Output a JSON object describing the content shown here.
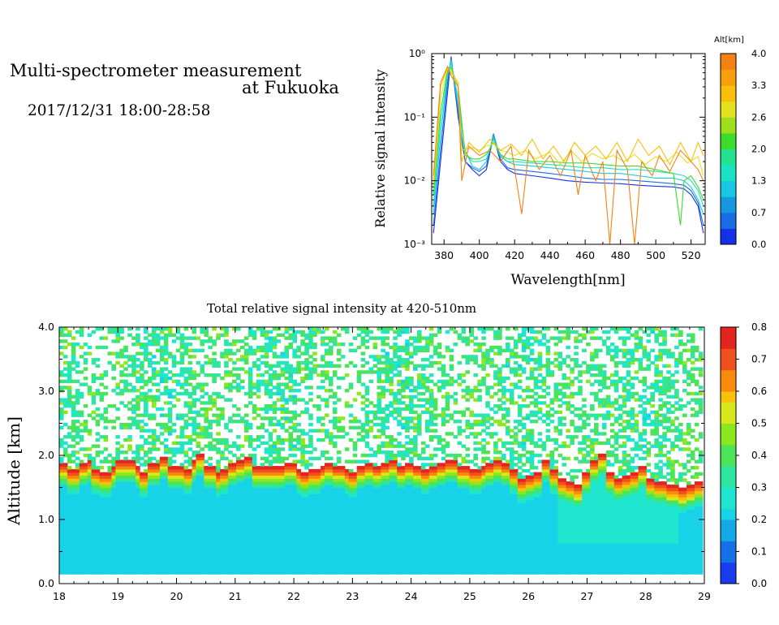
{
  "header": {
    "title_line1": "Multi-spectrometer measurement",
    "title_line2": "at Fukuoka",
    "period": "2017/12/31 18:00-28:58"
  },
  "colors": {
    "alt_scale": [
      "#1530e8",
      "#1a6ce6",
      "#1598e0",
      "#18c8e2",
      "#1ae3c4",
      "#22e490",
      "#3cdc2c",
      "#9ede1a",
      "#e4e11e",
      "#f8c00a",
      "#f8a00a",
      "#f38212"
    ],
    "intensity_scale": [
      "#1a3cf0",
      "#1670e8",
      "#14a8e6",
      "#18d2e8",
      "#1ee6cf",
      "#2ee6a2",
      "#4ae35a",
      "#8ce81e",
      "#d8e81c",
      "#f8c20c",
      "#f88a0c",
      "#f0501e",
      "#e4241e"
    ]
  },
  "chart_data": [
    {
      "type": "line",
      "xlabel": "Wavelength[nm]",
      "ylabel": "Relative signal intensity",
      "xlim": [
        373,
        528
      ],
      "ylim": [
        0.001,
        1
      ],
      "yscale": "log",
      "x_ticks": [
        "380",
        "400",
        "420",
        "440",
        "460",
        "480",
        "500",
        "520"
      ],
      "y_ticks": [
        "10⁻³",
        "10⁻²",
        "10⁻¹",
        "10⁰"
      ],
      "legend_title": "Alt[km]",
      "colorbar_ticks": [
        "4.0",
        "3.3",
        "2.6",
        "2.0",
        "1.3",
        "0.7",
        "0.0"
      ],
      "series": [
        {
          "alt": 0.2,
          "values": [
            [
              374,
              0.0015
            ],
            [
              378,
              0.02
            ],
            [
              382,
              0.25
            ],
            [
              384,
              0.9
            ],
            [
              388,
              0.1
            ],
            [
              392,
              0.02
            ],
            [
              396,
              0.015
            ],
            [
              400,
              0.012
            ],
            [
              404,
              0.015
            ],
            [
              408,
              0.05
            ],
            [
              412,
              0.02
            ],
            [
              416,
              0.015
            ],
            [
              420,
              0.013
            ],
            [
              430,
              0.012
            ],
            [
              440,
              0.011
            ],
            [
              450,
              0.01
            ],
            [
              460,
              0.0095
            ],
            [
              470,
              0.0092
            ],
            [
              480,
              0.009
            ],
            [
              490,
              0.0085
            ],
            [
              500,
              0.0082
            ],
            [
              510,
              0.008
            ],
            [
              516,
              0.0075
            ],
            [
              520,
              0.006
            ],
            [
              524,
              0.004
            ],
            [
              527,
              0.0015
            ]
          ]
        },
        {
          "alt": 0.5,
          "values": [
            [
              374,
              0.002
            ],
            [
              378,
              0.03
            ],
            [
              382,
              0.35
            ],
            [
              384,
              0.85
            ],
            [
              388,
              0.12
            ],
            [
              392,
              0.02
            ],
            [
              396,
              0.016
            ],
            [
              400,
              0.014
            ],
            [
              404,
              0.017
            ],
            [
              408,
              0.055
            ],
            [
              412,
              0.022
            ],
            [
              416,
              0.016
            ],
            [
              420,
              0.015
            ],
            [
              430,
              0.014
            ],
            [
              440,
              0.013
            ],
            [
              450,
              0.012
            ],
            [
              460,
              0.011
            ],
            [
              470,
              0.0105
            ],
            [
              480,
              0.0105
            ],
            [
              490,
              0.01
            ],
            [
              500,
              0.0095
            ],
            [
              510,
              0.009
            ],
            [
              516,
              0.0085
            ],
            [
              520,
              0.007
            ],
            [
              524,
              0.0045
            ],
            [
              527,
              0.002
            ]
          ]
        },
        {
          "alt": 1.0,
          "values": [
            [
              374,
              0.003
            ],
            [
              378,
              0.05
            ],
            [
              382,
              0.45
            ],
            [
              384,
              0.8
            ],
            [
              388,
              0.15
            ],
            [
              392,
              0.03
            ],
            [
              396,
              0.017
            ],
            [
              400,
              0.015
            ],
            [
              404,
              0.02
            ],
            [
              408,
              0.05
            ],
            [
              412,
              0.025
            ],
            [
              416,
              0.02
            ],
            [
              420,
              0.018
            ],
            [
              430,
              0.017
            ],
            [
              440,
              0.016
            ],
            [
              450,
              0.015
            ],
            [
              460,
              0.014
            ],
            [
              470,
              0.013
            ],
            [
              480,
              0.013
            ],
            [
              490,
              0.012
            ],
            [
              500,
              0.011
            ],
            [
              510,
              0.011
            ],
            [
              516,
              0.01
            ],
            [
              520,
              0.008
            ],
            [
              524,
              0.005
            ],
            [
              527,
              0.003
            ]
          ]
        },
        {
          "alt": 1.6,
          "values": [
            [
              374,
              0.004
            ],
            [
              378,
              0.08
            ],
            [
              382,
              0.5
            ],
            [
              384,
              0.7
            ],
            [
              388,
              0.2
            ],
            [
              392,
              0.028
            ],
            [
              396,
              0.02
            ],
            [
              400,
              0.02
            ],
            [
              404,
              0.022
            ],
            [
              408,
              0.045
            ],
            [
              412,
              0.024
            ],
            [
              416,
              0.02
            ],
            [
              420,
              0.02
            ],
            [
              430,
              0.019
            ],
            [
              440,
              0.018
            ],
            [
              450,
              0.017
            ],
            [
              460,
              0.016
            ],
            [
              470,
              0.016
            ],
            [
              480,
              0.015
            ],
            [
              490,
              0.015
            ],
            [
              500,
              0.014
            ],
            [
              510,
              0.013
            ],
            [
              516,
              0.012
            ],
            [
              520,
              0.01
            ],
            [
              524,
              0.007
            ],
            [
              527,
              0.004
            ]
          ]
        },
        {
          "alt": 2.2,
          "values": [
            [
              374,
              0.006
            ],
            [
              378,
              0.12
            ],
            [
              382,
              0.55
            ],
            [
              384,
              0.6
            ],
            [
              388,
              0.3
            ],
            [
              392,
              0.025
            ],
            [
              396,
              0.022
            ],
            [
              400,
              0.022
            ],
            [
              404,
              0.026
            ],
            [
              408,
              0.04
            ],
            [
              412,
              0.026
            ],
            [
              416,
              0.022
            ],
            [
              420,
              0.022
            ],
            [
              430,
              0.02
            ],
            [
              440,
              0.02
            ],
            [
              450,
              0.019
            ],
            [
              460,
              0.019
            ],
            [
              470,
              0.018
            ],
            [
              480,
              0.017
            ],
            [
              490,
              0.017
            ],
            [
              500,
              0.015
            ],
            [
              510,
              0.013
            ],
            [
              514,
              0.002
            ],
            [
              516,
              0.01
            ],
            [
              520,
              0.012
            ],
            [
              524,
              0.008
            ],
            [
              527,
              0.005
            ]
          ]
        },
        {
          "alt": 2.7,
          "values": [
            [
              374,
              0.008
            ],
            [
              378,
              0.2
            ],
            [
              382,
              0.6
            ],
            [
              384,
              0.55
            ],
            [
              388,
              0.3
            ],
            [
              390,
              0.03
            ],
            [
              396,
              0.033
            ],
            [
              400,
              0.03
            ],
            [
              404,
              0.035
            ],
            [
              408,
              0.038
            ],
            [
              412,
              0.03
            ],
            [
              416,
              0.028
            ],
            [
              420,
              0.025
            ],
            [
              426,
              0.03
            ],
            [
              432,
              0.022
            ],
            [
              440,
              0.028
            ],
            [
              446,
              0.018
            ],
            [
              452,
              0.03
            ],
            [
              458,
              0.02
            ],
            [
              464,
              0.027
            ],
            [
              470,
              0.022
            ],
            [
              476,
              0.025
            ],
            [
              482,
              0.02
            ],
            [
              488,
              0.026
            ],
            [
              494,
              0.018
            ],
            [
              500,
              0.024
            ],
            [
              506,
              0.02
            ],
            [
              512,
              0.028
            ],
            [
              518,
              0.019
            ],
            [
              524,
              0.024
            ],
            [
              527,
              0.012
            ]
          ]
        },
        {
          "alt": 3.2,
          "values": [
            [
              374,
              0.01
            ],
            [
              378,
              0.3
            ],
            [
              382,
              0.62
            ],
            [
              384,
              0.5
            ],
            [
              388,
              0.35
            ],
            [
              390,
              0.02
            ],
            [
              394,
              0.04
            ],
            [
              400,
              0.028
            ],
            [
              406,
              0.045
            ],
            [
              412,
              0.03
            ],
            [
              418,
              0.038
            ],
            [
              424,
              0.025
            ],
            [
              430,
              0.045
            ],
            [
              436,
              0.022
            ],
            [
              442,
              0.035
            ],
            [
              448,
              0.02
            ],
            [
              454,
              0.04
            ],
            [
              460,
              0.025
            ],
            [
              466,
              0.035
            ],
            [
              472,
              0.022
            ],
            [
              478,
              0.04
            ],
            [
              484,
              0.02
            ],
            [
              490,
              0.045
            ],
            [
              496,
              0.025
            ],
            [
              502,
              0.035
            ],
            [
              508,
              0.018
            ],
            [
              514,
              0.04
            ],
            [
              520,
              0.02
            ],
            [
              524,
              0.04
            ],
            [
              527,
              0.025
            ]
          ]
        },
        {
          "alt": 3.7,
          "values": [
            [
              374,
              0.012
            ],
            [
              378,
              0.35
            ],
            [
              382,
              0.63
            ],
            [
              384,
              0.45
            ],
            [
              388,
              0.3
            ],
            [
              390,
              0.01
            ],
            [
              394,
              0.035
            ],
            [
              400,
              0.025
            ],
            [
              406,
              0.03
            ],
            [
              412,
              0.02
            ],
            [
              418,
              0.035
            ],
            [
              424,
              0.003
            ],
            [
              428,
              0.03
            ],
            [
              434,
              0.015
            ],
            [
              440,
              0.025
            ],
            [
              446,
              0.012
            ],
            [
              452,
              0.03
            ],
            [
              456,
              0.006
            ],
            [
              460,
              0.025
            ],
            [
              466,
              0.01
            ],
            [
              470,
              0.02
            ],
            [
              474,
              0.001
            ],
            [
              478,
              0.03
            ],
            [
              484,
              0.015
            ],
            [
              488,
              0.001
            ],
            [
              492,
              0.02
            ],
            [
              498,
              0.012
            ],
            [
              502,
              0.025
            ],
            [
              508,
              0.014
            ],
            [
              514,
              0.03
            ],
            [
              520,
              0.02
            ],
            [
              524,
              0.015
            ],
            [
              527,
              0.01
            ]
          ]
        }
      ]
    },
    {
      "type": "heatmap",
      "title": "Total relative signal intensity at 420-510nm",
      "xlabel": "",
      "ylabel": "Altitude [km]",
      "xlim": [
        18,
        29
      ],
      "ylim": [
        0,
        4
      ],
      "x_ticks": [
        "18",
        "19",
        "20",
        "21",
        "22",
        "23",
        "24",
        "25",
        "26",
        "27",
        "28",
        "29"
      ],
      "y_ticks": [
        "0.0",
        "1.0",
        "2.0",
        "3.0",
        "4.0"
      ],
      "colorbar_ticks": [
        "0.8",
        "0.7",
        "0.6",
        "0.5",
        "0.4",
        "0.3",
        "0.2",
        "0.1",
        "0.0"
      ],
      "vmin": 0.0,
      "vmax": 0.8,
      "data_xrange": [
        18.0,
        28.97
      ],
      "data_yrange": [
        0.15,
        4.0
      ],
      "cloud_base_km": [
        1.85,
        1.75,
        1.85,
        1.9,
        1.75,
        1.7,
        1.8,
        1.9,
        1.9,
        1.8,
        1.7,
        1.85,
        1.95,
        1.8,
        1.8,
        1.75,
        1.9,
        2.0,
        1.8,
        1.7,
        1.75,
        1.85,
        1.9,
        1.95,
        1.8,
        1.8,
        1.8,
        1.8,
        1.85,
        1.75,
        1.7,
        1.75,
        1.8,
        1.85,
        1.8,
        1.75,
        1.7,
        1.8,
        1.85,
        1.8,
        1.85,
        1.9,
        1.8,
        1.85,
        1.8,
        1.75,
        1.8,
        1.85,
        1.9,
        1.8,
        1.8,
        1.75,
        1.8,
        1.85,
        1.9,
        1.85,
        1.75,
        1.6,
        1.65,
        1.7,
        1.9,
        1.75,
        1.6,
        1.55,
        1.5,
        1.7,
        1.9,
        2.0,
        1.7,
        1.6,
        1.65,
        1.7,
        1.8,
        1.6,
        1.55,
        1.5,
        1.5,
        1.45,
        1.5,
        1.55
      ]
    }
  ]
}
